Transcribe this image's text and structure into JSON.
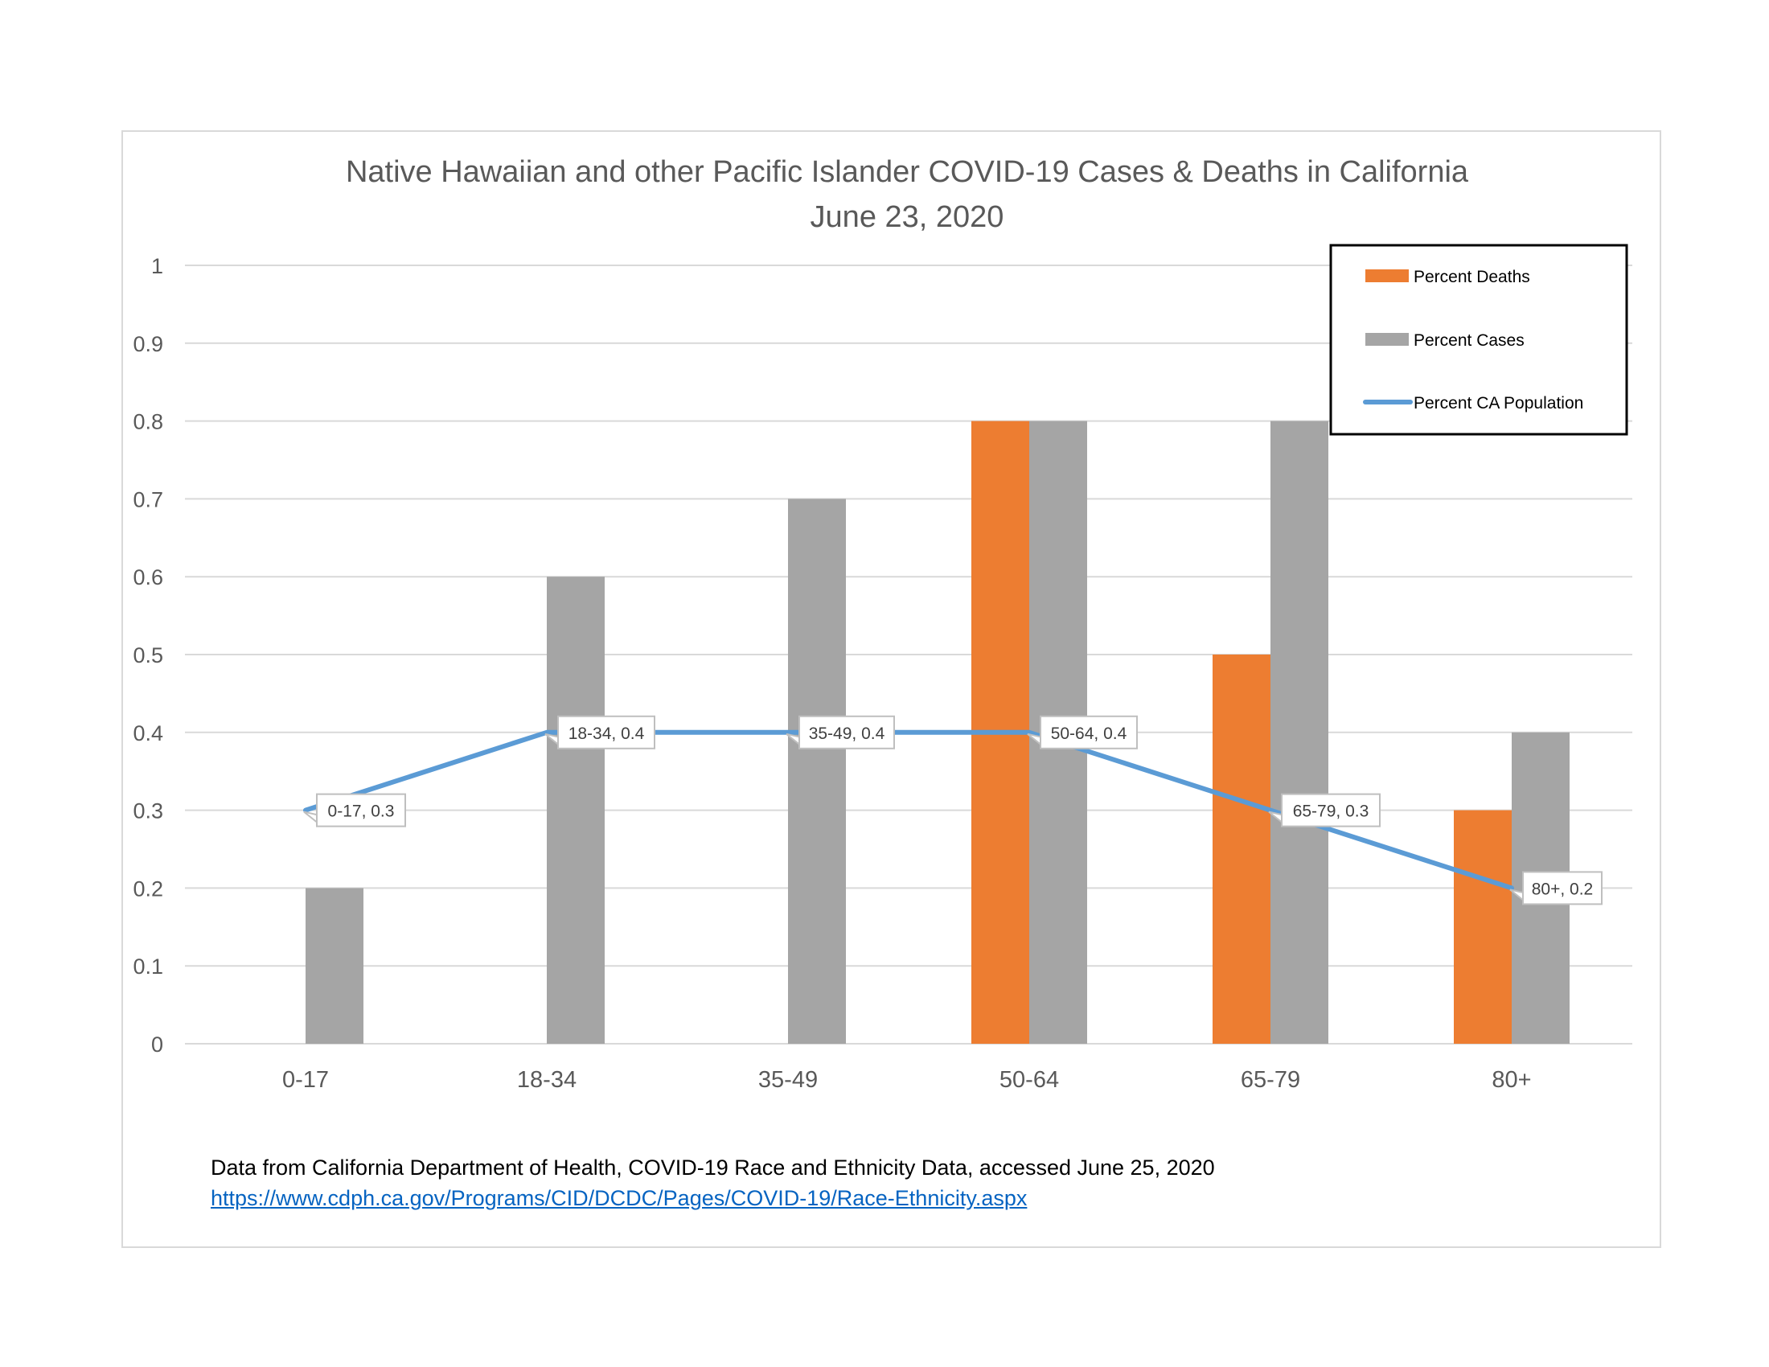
{
  "chart_data": {
    "type": "bar",
    "title": "Native Hawaiian and other Pacific Islander COVID-19 Cases & Deaths in California",
    "subtitle": "June 23, 2020",
    "xlabel": "",
    "ylabel": "",
    "categories": [
      "0-17",
      "18-34",
      "35-49",
      "50-64",
      "65-79",
      "80+"
    ],
    "series": [
      {
        "name": "Percent Deaths",
        "type": "bar",
        "color": "#ed7d31",
        "values": [
          0,
          0,
          0,
          0.8,
          0.5,
          0.3
        ]
      },
      {
        "name": "Percent Cases",
        "type": "bar",
        "color": "#a5a5a5",
        "values": [
          0.2,
          0.6,
          0.7,
          0.8,
          0.8,
          0.4
        ]
      },
      {
        "name": "Percent CA Population",
        "type": "line",
        "color": "#5b9bd5",
        "values": [
          0.3,
          0.4,
          0.4,
          0.4,
          0.3,
          0.2
        ]
      }
    ],
    "data_labels": [
      "0-17, 0.3",
      "18-34, 0.4",
      "35-49, 0.4",
      "50-64, 0.4",
      "65-79, 0.3",
      "80+, 0.2"
    ],
    "ylim": [
      0,
      1
    ],
    "yticks": [
      "0",
      "0.1",
      "0.2",
      "0.3",
      "0.4",
      "0.5",
      "0.6",
      "0.7",
      "0.8",
      "0.9",
      "1"
    ],
    "grid": true,
    "legend_position": "top-right"
  },
  "footer": {
    "source_note": "Data from California Department of Health, COVID-19 Race and Ethnicity Data, accessed June 25, 2020",
    "source_link": "https://www.cdph.ca.gov/Programs/CID/DCDC/Pages/COVID-19/Race-Ethnicity.aspx"
  }
}
